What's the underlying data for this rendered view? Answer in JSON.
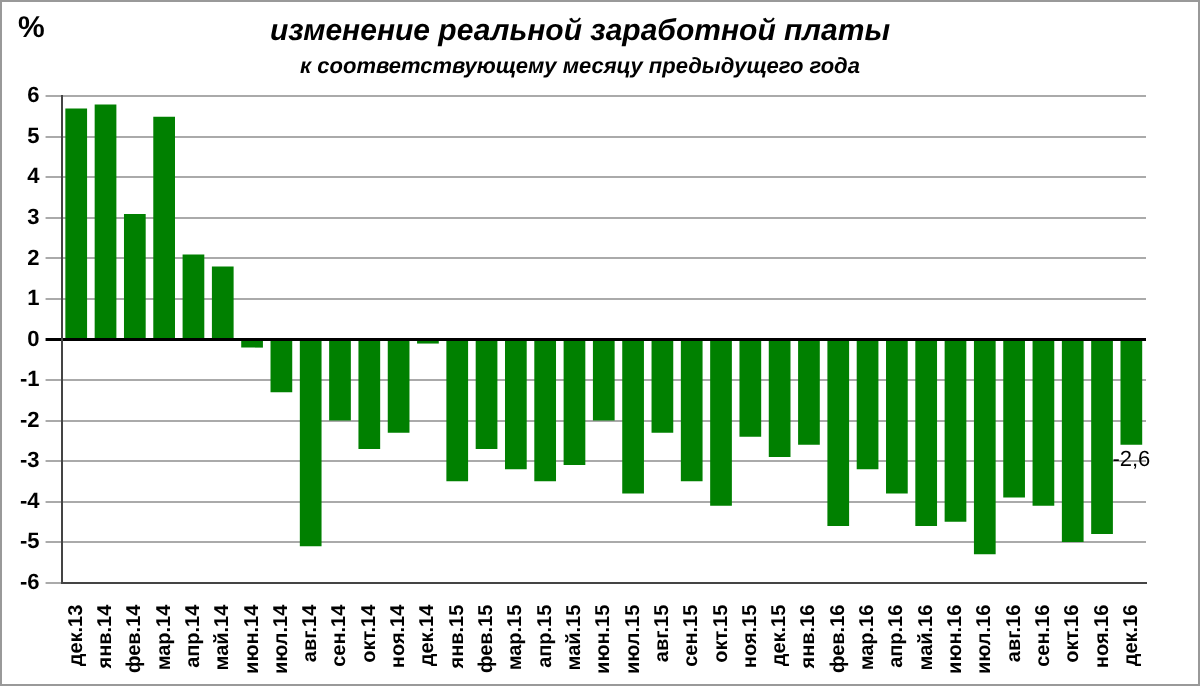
{
  "chart_data": {
    "type": "bar",
    "title": "изменение реальной заработной платы",
    "subtitle": "к соответствующему месяцу предыдущего года",
    "ylabel": "%",
    "categories": [
      "дек.13",
      "янв.14",
      "фев.14",
      "мар.14",
      "апр.14",
      "май.14",
      "июн.14",
      "июл.14",
      "авг.14",
      "сен.14",
      "окт.14",
      "ноя.14",
      "дек.14",
      "янв.15",
      "фев.15",
      "мар.15",
      "апр.15",
      "май.15",
      "июн.15",
      "июл.15",
      "авг.15",
      "сен.15",
      "окт.15",
      "ноя.15",
      "дек.15",
      "янв.16",
      "фев.16",
      "мар.16",
      "апр.16",
      "май.16",
      "июн.16",
      "июл.16",
      "авг.16",
      "сен.16",
      "окт.16",
      "ноя.16",
      "дек.16"
    ],
    "values": [
      5.7,
      5.8,
      3.1,
      5.5,
      2.1,
      1.8,
      -0.2,
      -1.3,
      -5.1,
      -2.0,
      -2.7,
      -2.3,
      -0.1,
      -3.5,
      -2.7,
      -3.2,
      -3.5,
      -3.1,
      -2.0,
      -3.8,
      -2.3,
      -3.5,
      -4.1,
      -2.4,
      -2.9,
      -2.6,
      -4.6,
      -3.2,
      -3.8,
      -4.6,
      -4.5,
      -5.3,
      -3.9,
      -4.1,
      -5.0,
      -4.8,
      -2.6
    ],
    "value_labels": [
      null,
      null,
      null,
      null,
      null,
      null,
      null,
      null,
      null,
      null,
      null,
      null,
      null,
      null,
      null,
      null,
      null,
      null,
      null,
      null,
      null,
      null,
      null,
      null,
      null,
      null,
      null,
      null,
      null,
      null,
      null,
      null,
      null,
      null,
      null,
      null,
      "-2,6"
    ],
    "color": "#008000",
    "ylim": [
      -6,
      6
    ],
    "yticks": [
      -6,
      -5,
      -4,
      -3,
      -2,
      -1,
      0,
      1,
      2,
      3,
      4,
      5,
      6
    ],
    "grid": "y"
  }
}
